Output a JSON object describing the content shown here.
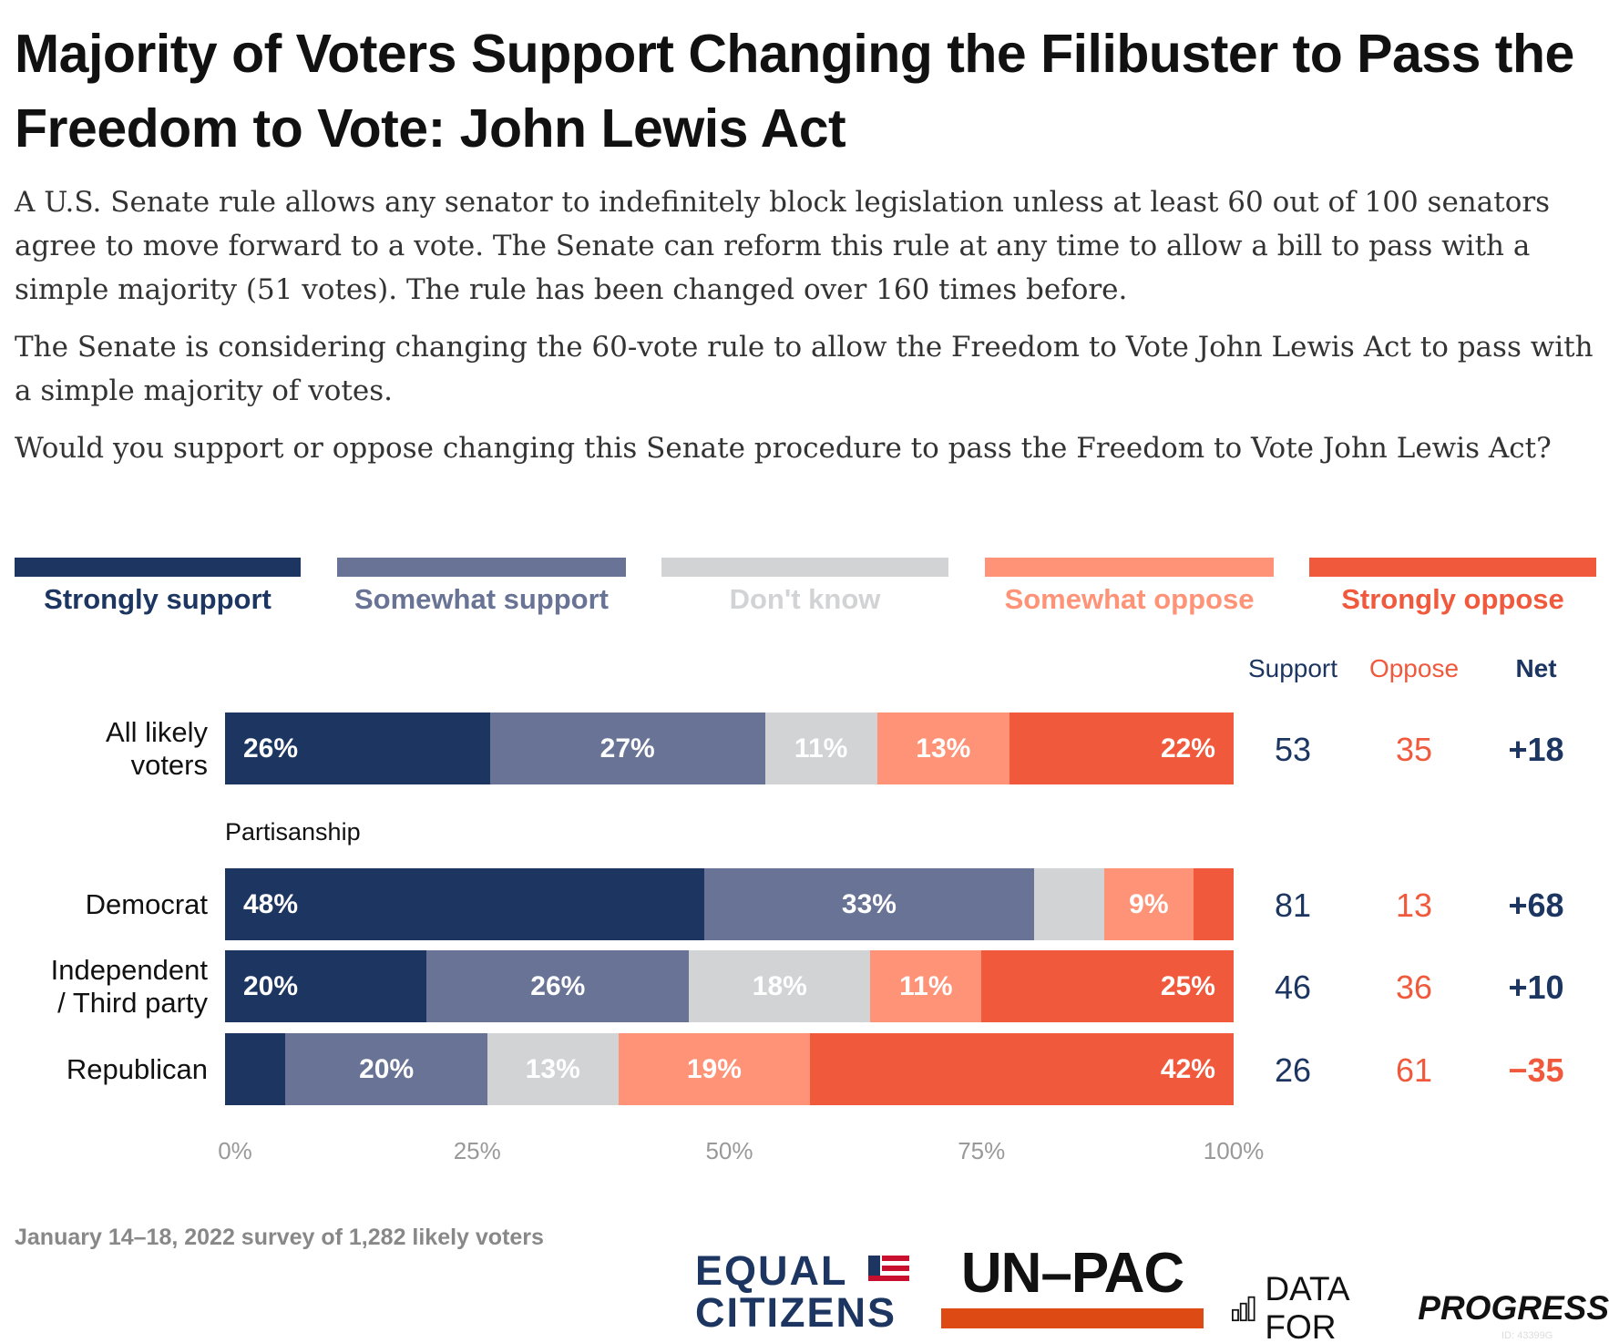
{
  "title": "Majority of Voters Support Changing the Filibuster to Pass the Freedom to Vote: John Lewis Act",
  "paragraphs": [
    "A U.S. Senate rule allows any senator to indefinitely block legislation unless at least 60 out of 100 senators agree to move forward to a vote. The Senate can reform this rule at any time to allow a bill to pass with a simple majority (51 votes). The rule has been changed over 160 times before.",
    "The Senate is considering changing the 60-vote rule to allow the Freedom to Vote John Lewis Act to pass with a simple majority of votes.",
    "Would you support or oppose changing this Senate procedure to pass the Freedom to Vote John Lewis Act?"
  ],
  "chart_data": {
    "type": "bar",
    "orientation": "horizontal-stacked-100",
    "series": [
      {
        "name": "Strongly support",
        "color": "#1c3661",
        "text_color": "#1c3661"
      },
      {
        "name": "Somewhat support",
        "color": "#687395",
        "text_color": "#687395"
      },
      {
        "name": "Don't know",
        "color": "#d2d3d5",
        "text_color": "#d2d3d5"
      },
      {
        "name": "Somewhat oppose",
        "color": "#fe9377",
        "text_color": "#fe9377"
      },
      {
        "name": "Strongly oppose",
        "color": "#f0593c",
        "text_color": "#f0593c"
      }
    ],
    "legend": "top",
    "section_label": "Partisanship",
    "rows": [
      {
        "label": "All likely voters",
        "label_lines": [
          "All likely",
          "voters"
        ],
        "values": [
          26,
          27,
          11,
          13,
          22
        ],
        "labels": [
          "26%",
          "27%",
          "11%",
          "13%",
          "22%"
        ],
        "support": "53",
        "oppose": "35",
        "net": "+18"
      },
      {
        "label": "Democrat",
        "label_lines": [
          "Democrat"
        ],
        "values": [
          48,
          33,
          7,
          9,
          4
        ],
        "labels": [
          "48%",
          "33%",
          "",
          "9%",
          ""
        ],
        "support": "81",
        "oppose": "13",
        "net": "+68"
      },
      {
        "label": "Independent / Third party",
        "label_lines": [
          "Independent",
          "/ Third party"
        ],
        "values": [
          20,
          26,
          18,
          11,
          25
        ],
        "labels": [
          "20%",
          "26%",
          "18%",
          "11%",
          "25%"
        ],
        "support": "46",
        "oppose": "36",
        "net": "+10"
      },
      {
        "label": "Republican",
        "label_lines": [
          "Republican"
        ],
        "values": [
          6,
          20,
          13,
          19,
          42
        ],
        "labels": [
          "",
          "20%",
          "13%",
          "19%",
          "42%"
        ],
        "support": "26",
        "oppose": "61",
        "net": "−35"
      }
    ],
    "columns": {
      "support": "Support",
      "oppose": "Oppose",
      "net": "Net"
    },
    "x_ticks": [
      "0%",
      "25%",
      "50%",
      "75%",
      "100%"
    ],
    "xlim": [
      0,
      100
    ],
    "grid": false
  },
  "footnote": "January 14–18, 2022 survey of 1,282 likely voters",
  "logos": {
    "equal_citizens": [
      "EQUAL",
      "CITIZENS"
    ],
    "unpac": "UN–PAC",
    "dfp_light": "DATA FOR",
    "dfp_bold": "PROGRESS"
  },
  "image_id": "ID: 43399G"
}
